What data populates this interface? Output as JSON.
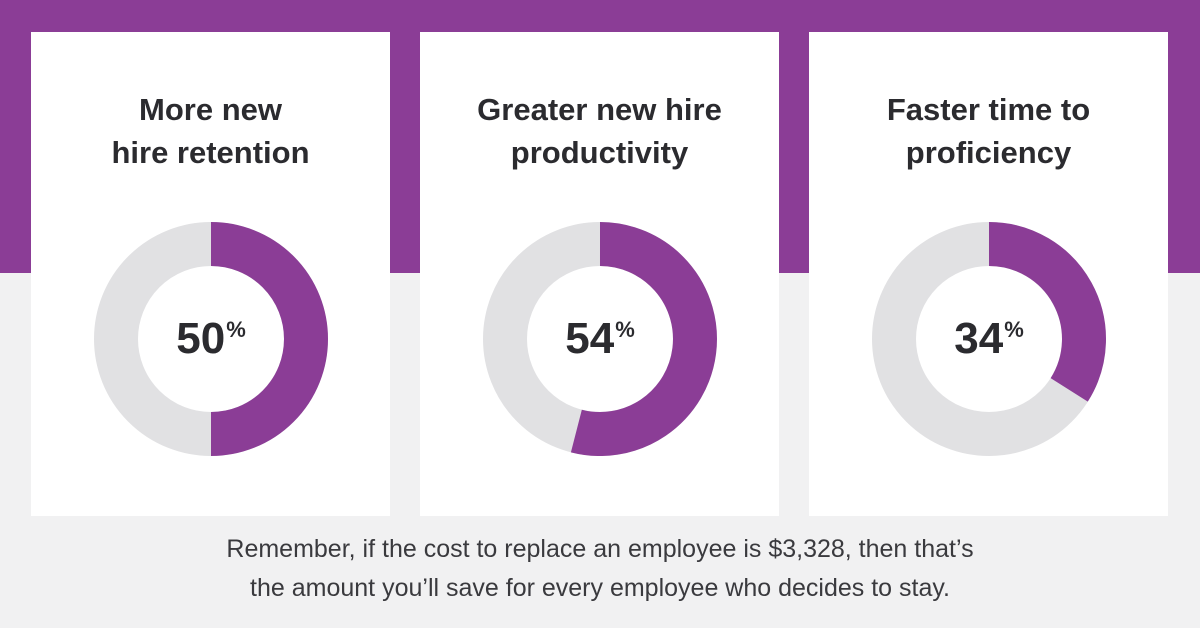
{
  "colors": {
    "accent": "#8b3d96",
    "track": "#e1e1e3",
    "background": "#f1f1f2",
    "card": "#ffffff",
    "text": "#2b2b2f"
  },
  "chart_data": [
    {
      "type": "pie",
      "title": "More new\nhire retention",
      "value": 50,
      "value_label": "50",
      "unit": "%"
    },
    {
      "type": "pie",
      "title": "Greater new hire\nproductivity",
      "value": 54,
      "value_label": "54",
      "unit": "%"
    },
    {
      "type": "pie",
      "title": "Faster time to\nproficiency",
      "value": 34,
      "value_label": "34",
      "unit": "%"
    }
  ],
  "footer": {
    "line1": "Remember, if the cost to replace an employee is $3,328, then that’s",
    "line2": "the amount you’ll save for every employee who decides to stay."
  }
}
